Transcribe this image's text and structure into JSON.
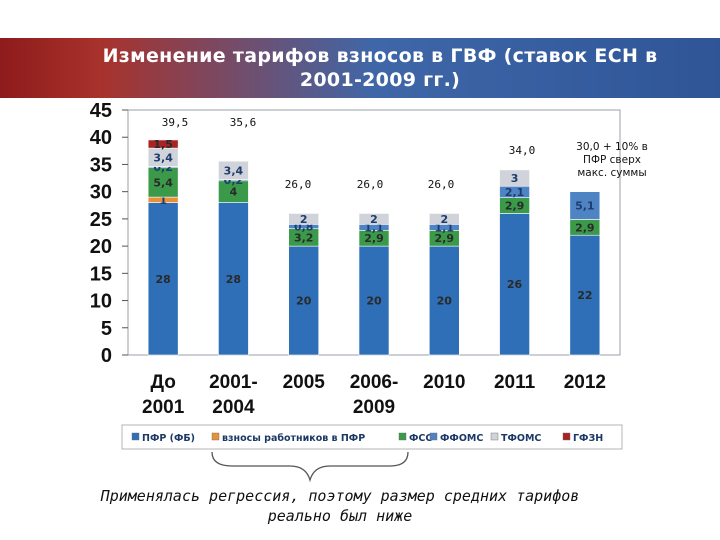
{
  "header": {
    "title_line1": "Изменение тарифов взносов в ГВФ (ставок ЕСН в",
    "title_line2": "2001-2009 гг.)"
  },
  "note": {
    "line1": "Применялась регрессия, поэтому размер средних тарифов",
    "line2": "реально был ниже"
  },
  "chart_data": {
    "type": "bar",
    "stacked": true,
    "title": "",
    "ylim": [
      0,
      45
    ],
    "yticks": [
      "0",
      "5",
      "10",
      "15",
      "20",
      "25",
      "30",
      "35",
      "40",
      "45"
    ],
    "categories": [
      [
        "До",
        "2001"
      ],
      [
        "2001-",
        "2004"
      ],
      [
        "2005"
      ],
      [
        "2006-",
        "2009"
      ],
      [
        "2010"
      ],
      [
        "2011"
      ],
      [
        "2012"
      ]
    ],
    "totals": [
      "39,5",
      "35,6",
      "26,0",
      "26,0",
      "26,0",
      "34,0",
      "30,0 + 10% в ПФР сверх макс. суммы"
    ],
    "series": [
      {
        "name": "ПФР (ФБ)",
        "color": "#2e6fb7",
        "values": [
          28,
          28,
          20,
          20,
          20,
          26,
          22
        ],
        "labels": [
          "28",
          "28",
          "20",
          "20",
          "20",
          "26",
          "22"
        ]
      },
      {
        "name": "взносы работников в ПФР",
        "color": "#e8913a",
        "values": [
          1,
          0,
          0,
          0,
          0,
          0,
          0
        ],
        "labels": [
          "1",
          "",
          "",
          "",
          "",
          "",
          ""
        ]
      },
      {
        "name": "ФСС",
        "color": "#3a9a4a",
        "values": [
          5.4,
          4,
          3.2,
          2.9,
          2.9,
          2.9,
          2.9
        ],
        "labels": [
          "5,4",
          "4",
          "3,2",
          "2,9",
          "2,9",
          "2,9",
          "2,9"
        ]
      },
      {
        "name": "ФФОМС",
        "color": "#4f84c4",
        "values": [
          0.2,
          0.2,
          0.8,
          1.1,
          1.1,
          2.1,
          5.1
        ],
        "labels": [
          "0,2",
          "0,2",
          "0,8",
          "1,1",
          "1,1",
          "2,1",
          "5,1"
        ]
      },
      {
        "name": "ТФОМС",
        "color": "#d0d3d9",
        "values": [
          3.4,
          3.4,
          2,
          2,
          2,
          3,
          0
        ],
        "labels": [
          "3,4",
          "3,4",
          "2",
          "2",
          "2",
          "3",
          ""
        ]
      },
      {
        "name": "ГФЗН",
        "color": "#a82424",
        "values": [
          1.5,
          0,
          0,
          0,
          0,
          0,
          0
        ],
        "labels": [
          "1,5",
          "",
          "",
          "",
          "",
          "",
          ""
        ]
      }
    ]
  }
}
